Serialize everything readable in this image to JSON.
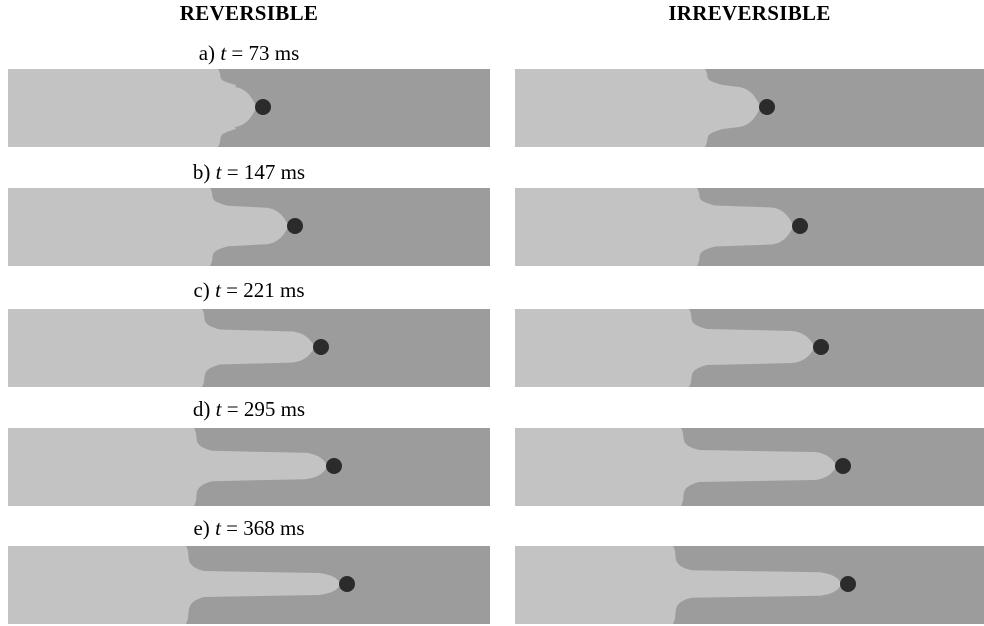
{
  "columns": {
    "left_title": "REVERSIBLE",
    "right_title": "IRREVERSIBLE"
  },
  "frames": [
    {
      "label": "a)",
      "t_var": "t",
      "eq": " = ",
      "value": "73",
      "unit": "ms",
      "left_tongue": 0.0,
      "right_tongue": 0.0
    },
    {
      "label": "b)",
      "t_var": "t",
      "eq": " = ",
      "value": "147",
      "unit": "ms",
      "left_tongue": 0.18,
      "right_tongue": 0.15
    },
    {
      "label": "c)",
      "t_var": "t",
      "eq": " = ",
      "value": "221",
      "unit": "ms",
      "left_tongue": 0.45,
      "right_tongue": 0.4
    },
    {
      "label": "d)",
      "t_var": "t",
      "eq": " = ",
      "value": "295",
      "unit": "ms",
      "left_tongue": 0.68,
      "right_tongue": 0.6
    },
    {
      "label": "e)",
      "t_var": "t",
      "eq": " = ",
      "value": "368",
      "unit": "ms",
      "left_tongue": 0.9,
      "right_tongue": 0.82
    }
  ],
  "colors": {
    "light_fluid": "#c3c3c3",
    "dark_fluid": "#9c9c9c",
    "particle": "#2b2b2b"
  }
}
